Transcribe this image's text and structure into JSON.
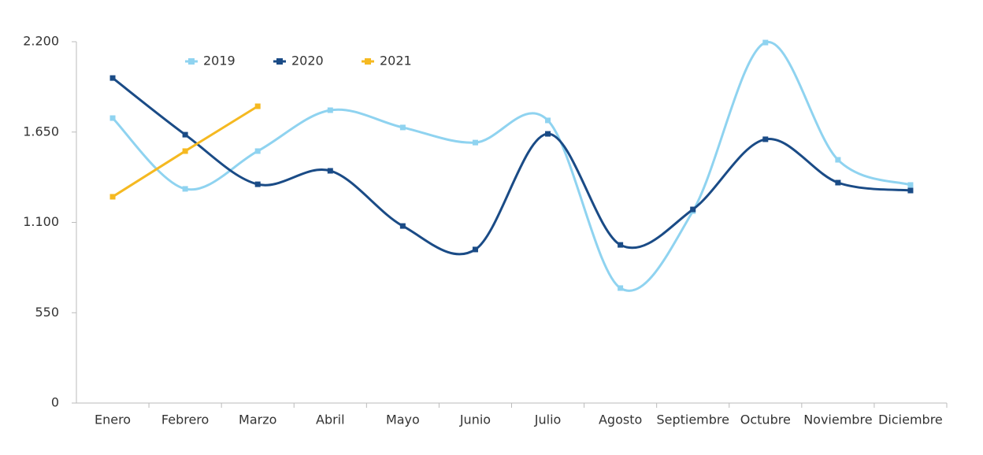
{
  "chart_data": {
    "type": "line",
    "categories": [
      "Enero",
      "Febrero",
      "Marzo",
      "Abril",
      "Mayo",
      "Junio",
      "Julio",
      "Agosto",
      "Septiembre",
      "Octubre",
      "Noviembre",
      "Diciembre"
    ],
    "series": [
      {
        "name": "2019",
        "color": "#8fd3f0",
        "smooth": true,
        "values": [
          1735,
          1304,
          1534,
          1783,
          1678,
          1586,
          1721,
          700,
          1169,
          2195,
          1481,
          1328
        ]
      },
      {
        "name": "2020",
        "color": "#1a4b86",
        "smooth": true,
        "values": [
          1979,
          1634,
          1332,
          1414,
          1078,
          935,
          1639,
          963,
          1179,
          1606,
          1342,
          1294
        ]
      },
      {
        "name": "2021",
        "color": "#f5b921",
        "smooth": false,
        "values": [
          1256,
          1534,
          1807,
          null,
          null,
          null,
          null,
          null,
          null,
          null,
          null,
          null
        ]
      }
    ],
    "ylim": [
      0,
      2200
    ],
    "yticks": [
      0,
      550,
      {
        "value": 1100,
        "label": "1.100"
      },
      {
        "value": 1650,
        "label": "1.650"
      },
      {
        "value": 2200,
        "label": "2.200"
      }
    ],
    "grid": false,
    "legend": "top"
  }
}
